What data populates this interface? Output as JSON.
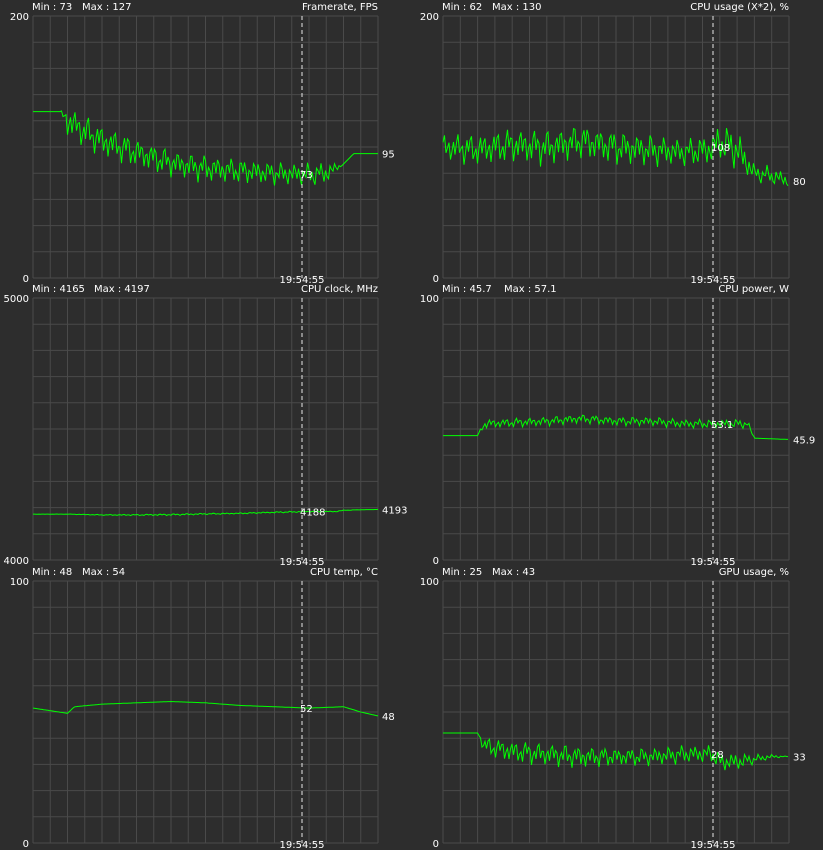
{
  "colors": {
    "background": "#2d2d2d",
    "grid": "#4a4a4a",
    "trace": "#00ff00",
    "text": "#ffffff",
    "marker": "#e8e8e8"
  },
  "chart_data": [
    {
      "type": "line",
      "title": "Framerate, FPS",
      "min_label": "Min : 73",
      "max_label": "Max : 127",
      "ylim": [
        0,
        200
      ],
      "ytick_labels": [
        "200",
        "0"
      ],
      "marker_time": "19:54:55",
      "marker_value": "73",
      "current_value": "95",
      "series": [
        {
          "x": [
            0,
            8,
            10,
            15,
            20,
            30,
            40,
            50,
            60,
            70,
            80,
            85,
            90,
            93,
            100
          ],
          "values": [
            127,
            127,
            120,
            112,
            105,
            96,
            88,
            84,
            82,
            80,
            79,
            80,
            87,
            95,
            95
          ],
          "noise": [
            0,
            0,
            14,
            14,
            14,
            13,
            12,
            12,
            11,
            10,
            10,
            10,
            0,
            0,
            0
          ]
        }
      ]
    },
    {
      "type": "line",
      "title": "CPU usage (X*2), %",
      "min_label": "Min : 62",
      "max_label": "Max : 130",
      "ylim": [
        0,
        200
      ],
      "ytick_labels": [
        "200",
        "0"
      ],
      "marker_time": "19:54:55",
      "marker_value": "108",
      "current_value": "80",
      "series": [
        {
          "x": [
            0,
            10,
            20,
            30,
            40,
            50,
            60,
            70,
            77,
            80,
            85,
            90,
            95,
            100
          ],
          "values": [
            100,
            98,
            102,
            100,
            105,
            100,
            98,
            96,
            98,
            104,
            98,
            80,
            78,
            74
          ],
          "noise": [
            12,
            14,
            15,
            16,
            15,
            15,
            14,
            12,
            14,
            16,
            18,
            8,
            8,
            6
          ]
        }
      ]
    },
    {
      "type": "line",
      "title": "CPU clock, MHz",
      "min_label": "Min : 4165",
      "max_label": "Max : 4197",
      "ylim": [
        4000,
        5000
      ],
      "ytick_labels": [
        "5000",
        "4000"
      ],
      "marker_time": "19:54:55",
      "marker_value": "4188",
      "current_value": "4193",
      "series": [
        {
          "x": [
            0,
            10,
            20,
            30,
            40,
            50,
            60,
            70,
            80,
            88,
            90,
            100
          ],
          "values": [
            4175,
            4175,
            4172,
            4172,
            4173,
            4176,
            4178,
            4182,
            4185,
            4185,
            4190,
            4193
          ],
          "noise": [
            0,
            1,
            2,
            3,
            4,
            3,
            3,
            3,
            3,
            2,
            1,
            0
          ]
        }
      ]
    },
    {
      "type": "line",
      "title": "CPU power, W",
      "min_label": "Min : 45.7",
      "max_label": "Max : 57.1",
      "ylim": [
        0,
        100
      ],
      "ytick_labels": [
        "100",
        "0"
      ],
      "marker_time": "19:54:55",
      "marker_value": "53.1",
      "current_value": "45.9",
      "series": [
        {
          "x": [
            0,
            10,
            12,
            30,
            40,
            50,
            60,
            70,
            80,
            88,
            90,
            100
          ],
          "values": [
            47.5,
            47.5,
            52,
            53,
            54,
            53,
            53,
            52,
            52,
            52,
            46.5,
            46
          ],
          "noise": [
            0,
            0,
            2,
            2,
            2,
            2,
            2,
            2,
            2,
            2,
            0,
            0
          ]
        }
      ]
    },
    {
      "type": "line",
      "title": "CPU temp, °C",
      "min_label": "Min : 48",
      "max_label": "Max : 54",
      "ylim": [
        0,
        100
      ],
      "ytick_labels": [
        "100",
        "0"
      ],
      "marker_time": "19:54:55",
      "marker_value": "52",
      "current_value": "48",
      "series": [
        {
          "x": [
            0,
            10,
            12,
            20,
            30,
            40,
            50,
            60,
            70,
            80,
            90,
            95,
            100
          ],
          "values": [
            51.5,
            49.5,
            52,
            53,
            53.5,
            54,
            53.5,
            52.5,
            52,
            51.5,
            52,
            50,
            48.5
          ],
          "noise": [
            0,
            0,
            0,
            0,
            0,
            0,
            0,
            0,
            0,
            0,
            0,
            0,
            0
          ]
        }
      ]
    },
    {
      "type": "line",
      "title": "GPU usage, %",
      "min_label": "Min : 25",
      "max_label": "Max : 43",
      "ylim": [
        0,
        100
      ],
      "ytick_labels": [
        "100",
        "0"
      ],
      "marker_time": "19:54:55",
      "marker_value": "28",
      "current_value": "33",
      "series": [
        {
          "x": [
            0,
            10,
            12,
            20,
            30,
            40,
            50,
            60,
            70,
            78,
            80,
            85,
            90,
            95,
            100
          ],
          "values": [
            42,
            42,
            37,
            35,
            34,
            33,
            33,
            33,
            34,
            34,
            31,
            31,
            32,
            33,
            33
          ],
          "noise": [
            0,
            0,
            4,
            5,
            5,
            5,
            4,
            4,
            4,
            4,
            4,
            4,
            2,
            1,
            0
          ]
        }
      ]
    }
  ]
}
